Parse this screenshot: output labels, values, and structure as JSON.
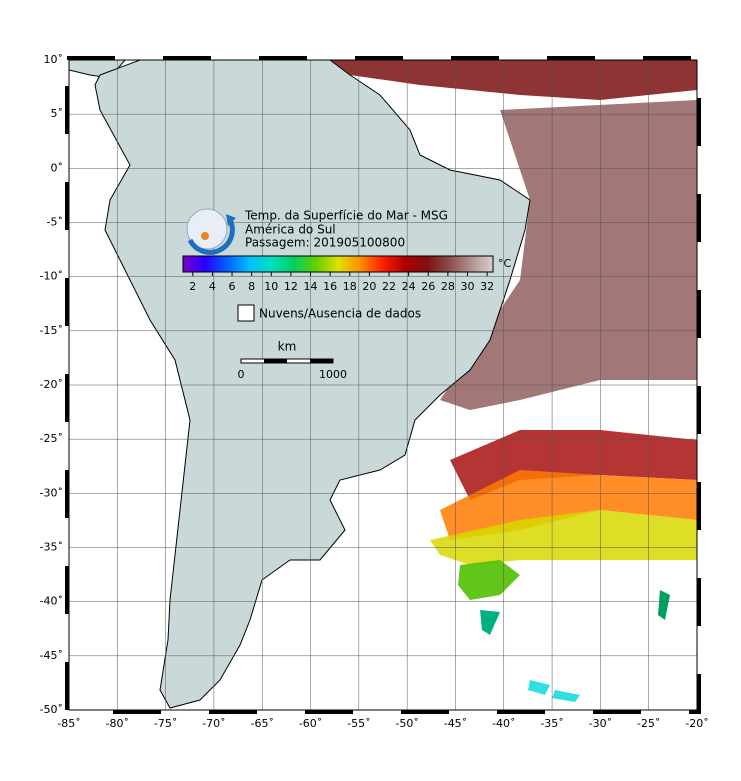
{
  "map": {
    "title": "Temp. da Superfície do Mar - MSG",
    "region": "América do Sul",
    "pass": "Passagem: 201905100800",
    "colorbar": {
      "unit": "°C",
      "range": [
        1,
        32.6
      ],
      "colors": [
        "#7a00c8",
        "#2a00ff",
        "#0060ff",
        "#00c0ff",
        "#00e0c0",
        "#00d060",
        "#60d000",
        "#e0e000",
        "#ff9000",
        "#ff2000",
        "#b00000",
        "#801010",
        "#8a4a4a",
        "#b09090",
        "#d8d0d0"
      ],
      "ticks": [
        2,
        4,
        6,
        8,
        10,
        12,
        14,
        16,
        18,
        20,
        22,
        24,
        26,
        28,
        30,
        32
      ]
    },
    "legend": "Nuvens/Ausencia de dados",
    "scale": {
      "unit": "km",
      "start": "0",
      "end": "1000"
    },
    "lonlim": [
      -85,
      -20
    ],
    "latlim": [
      -50,
      10
    ],
    "lon_ticks": [
      {
        "value": -85,
        "label": "-85˚"
      },
      {
        "value": -80,
        "label": "-80˚"
      },
      {
        "value": -75,
        "label": "-75˚"
      },
      {
        "value": -70,
        "label": "-70˚"
      },
      {
        "value": -65,
        "label": "-65˚"
      },
      {
        "value": -60,
        "label": "-60˚"
      },
      {
        "value": -55,
        "label": "-55˚"
      },
      {
        "value": -50,
        "label": "-50˚"
      },
      {
        "value": -45,
        "label": "-45˚"
      },
      {
        "value": -40,
        "label": "-40˚"
      },
      {
        "value": -35,
        "label": "-35˚"
      },
      {
        "value": -30,
        "label": "-30˚"
      },
      {
        "value": -25,
        "label": "-25˚"
      },
      {
        "value": -20,
        "label": "-20˚"
      }
    ],
    "lat_ticks": [
      {
        "value": 10,
        "label": "10˚"
      },
      {
        "value": 5,
        "label": "5˚"
      },
      {
        "value": 0,
        "label": "0˚"
      },
      {
        "value": -5,
        "label": "-5˚"
      },
      {
        "value": -10,
        "label": "-10˚"
      },
      {
        "value": -15,
        "label": "-15˚"
      },
      {
        "value": -20,
        "label": "-20˚"
      },
      {
        "value": -25,
        "label": "-25˚"
      },
      {
        "value": -30,
        "label": "-30˚"
      },
      {
        "value": -35,
        "label": "-35˚"
      },
      {
        "value": -40,
        "label": "-40˚"
      },
      {
        "value": -45,
        "label": "-45˚"
      },
      {
        "value": -50,
        "label": "-50˚"
      }
    ]
  }
}
